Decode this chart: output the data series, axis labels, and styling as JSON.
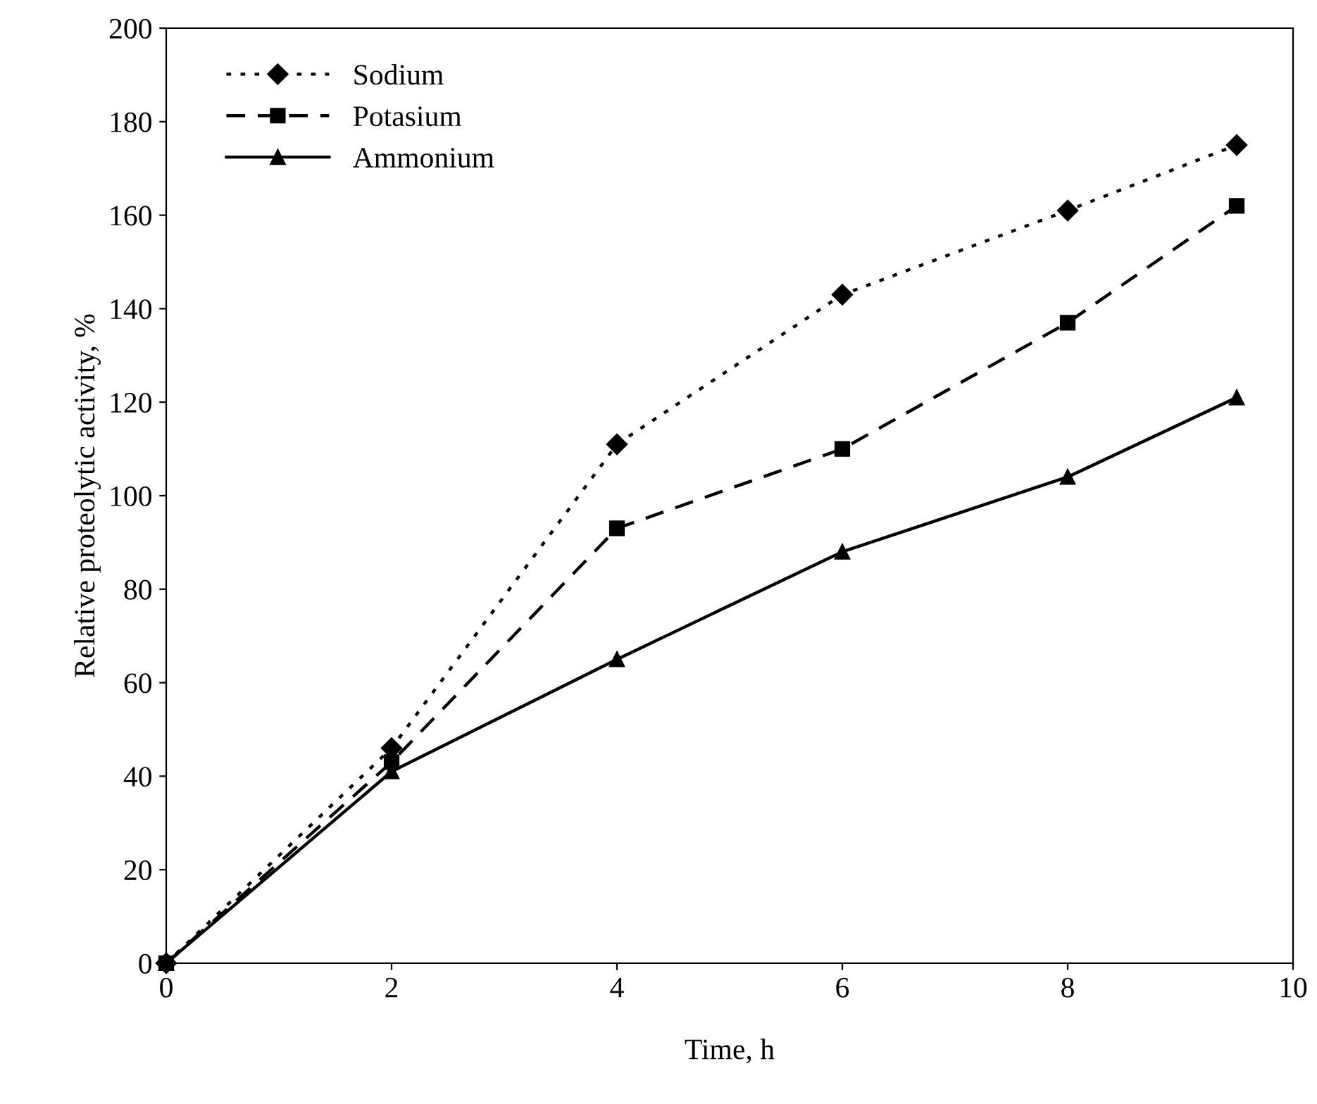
{
  "chart_data": {
    "type": "line",
    "xlabel": "Time, h",
    "ylabel": "Relative proteolytic activity, %",
    "xlim": [
      0,
      10
    ],
    "xticks": [
      0,
      2,
      4,
      6,
      8,
      10
    ],
    "ylim": [
      0,
      200
    ],
    "yticks": [
      0,
      20,
      40,
      60,
      80,
      100,
      120,
      140,
      160,
      180,
      200
    ],
    "grid": false,
    "legend": "top left",
    "series": [
      {
        "name": "Sodium",
        "color": "#000000",
        "marker": "diamond",
        "line_style": "dotted",
        "x": [
          0,
          2,
          4,
          6,
          8,
          9.5
        ],
        "values": [
          0,
          46,
          111,
          143,
          161,
          175
        ]
      },
      {
        "name": "Potasium",
        "color": "#000000",
        "marker": "square",
        "line_style": "dashed",
        "x": [
          0,
          2,
          4,
          6,
          8,
          9.5
        ],
        "values": [
          0,
          43,
          93,
          110,
          137,
          162
        ]
      },
      {
        "name": "Ammonium",
        "color": "#000000",
        "marker": "triangle",
        "line_style": "solid",
        "x": [
          0,
          2,
          4,
          6,
          8,
          9.5
        ],
        "values": [
          0,
          41,
          65,
          88,
          104,
          121
        ]
      }
    ]
  }
}
